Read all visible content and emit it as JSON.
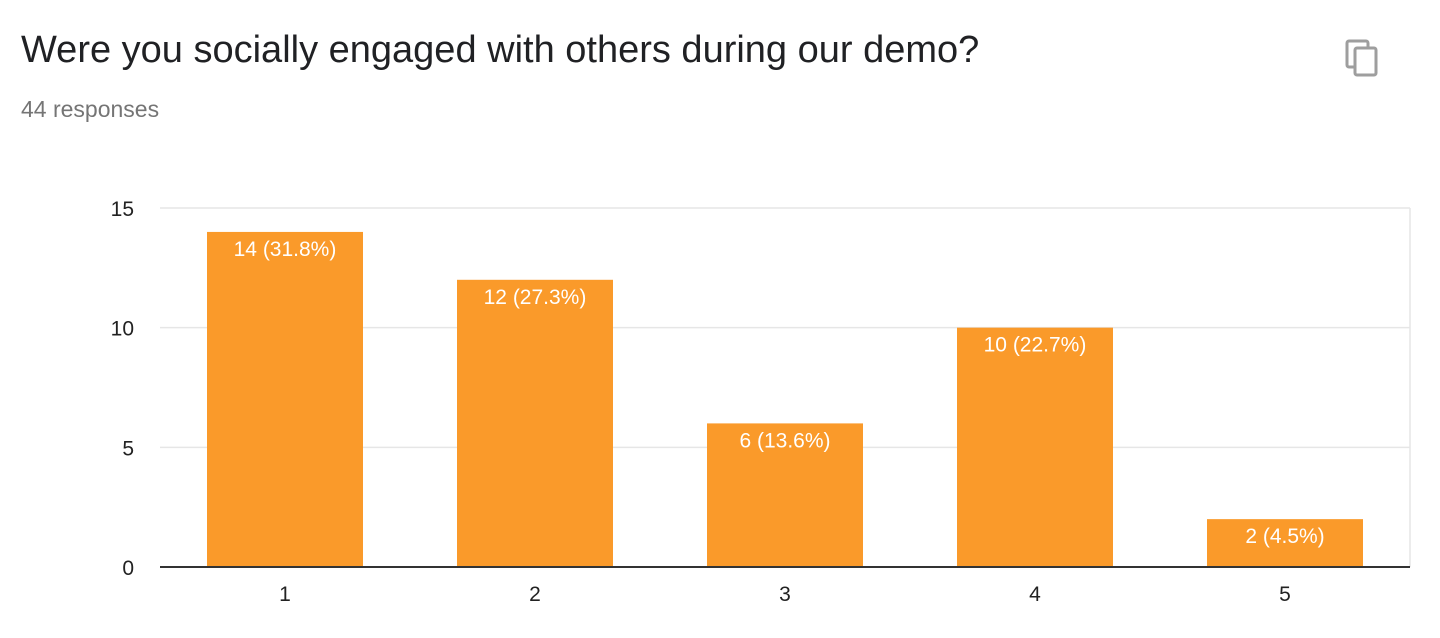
{
  "header": {
    "title": "Were you socially engaged with others during our demo?",
    "responses": "44 responses"
  },
  "icons": {
    "copy": "copy-icon"
  },
  "colors": {
    "bar": "#FA9A2A",
    "grid": "#e6e6e6",
    "axis": "#333333"
  },
  "chart_data": {
    "type": "bar",
    "title": "",
    "xlabel": "",
    "ylabel": "",
    "categories": [
      "1",
      "2",
      "3",
      "4",
      "5"
    ],
    "values": [
      14,
      12,
      6,
      10,
      2
    ],
    "data_labels": [
      "14 (31.8%)",
      "12 (27.3%)",
      "6 (13.6%)",
      "10 (22.7%)",
      "2 (4.5%)"
    ],
    "ylim": [
      0,
      15
    ],
    "yticks": [
      "0",
      "5",
      "10",
      "15"
    ],
    "grid": true,
    "legend": "none"
  }
}
